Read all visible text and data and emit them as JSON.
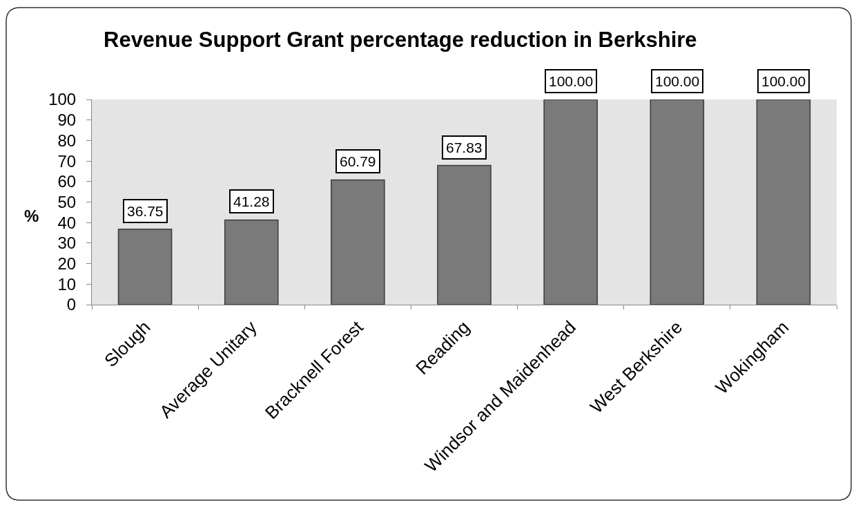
{
  "chart_data": {
    "type": "bar",
    "title": "Revenue Support Grant percentage reduction in Berkshire",
    "ylabel": "%",
    "categories": [
      "Slough",
      "Average Unitary",
      "Bracknell Forest",
      "Reading",
      "Windsor and Maidenhead",
      "West Berkshire",
      "Wokingham"
    ],
    "values": [
      36.75,
      41.28,
      60.79,
      67.83,
      100,
      100,
      100
    ],
    "value_labels": [
      "36.75",
      "41.28",
      "60.79",
      "67.83",
      "100.00",
      "100.00",
      "100.00"
    ],
    "color": "#7a7a7a",
    "ylim": [
      0,
      100
    ],
    "yticks": [
      0,
      10,
      20,
      30,
      40,
      50,
      60,
      70,
      80,
      90,
      100
    ]
  }
}
